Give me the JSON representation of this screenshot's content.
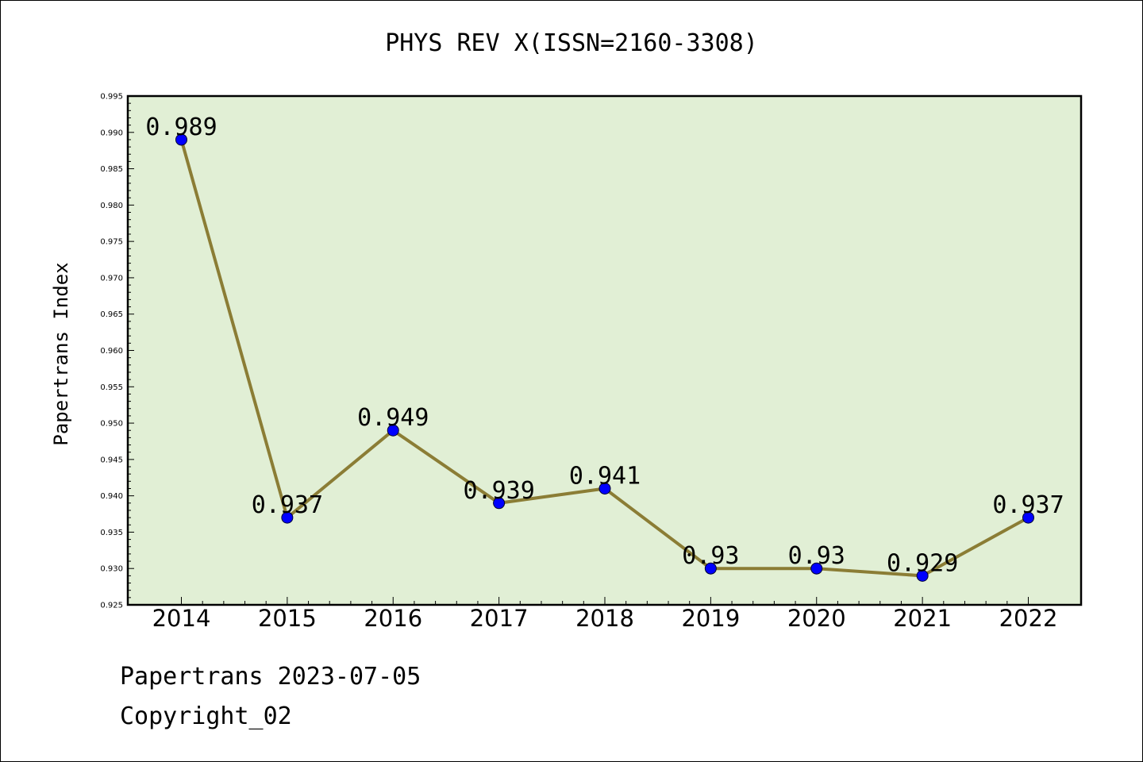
{
  "header": {
    "title": "PHYS REV X(ISSN=2160-3308)"
  },
  "footer": {
    "line1": "Papertrans 2023-07-05",
    "line2": "Copyright_02"
  },
  "colors": {
    "plot_background": "#e1efd5",
    "line": "#8b7d35",
    "marker": "#0000ff"
  },
  "chart_data": {
    "type": "line",
    "title": "PHYS REV X(ISSN=2160-3308)",
    "xlabel": "",
    "ylabel": "Papertrans Index",
    "x": [
      "2014",
      "2015",
      "2016",
      "2017",
      "2018",
      "2019",
      "2020",
      "2021",
      "2022"
    ],
    "series": [
      {
        "values": [
          0.989,
          0.937,
          0.949,
          0.939,
          0.941,
          0.93,
          0.93,
          0.929,
          0.937
        ],
        "labels": [
          "0.989",
          "0.937",
          "0.949",
          "0.939",
          "0.941",
          "0.93",
          "0.93",
          "0.929",
          "0.937"
        ]
      }
    ],
    "ylim": [
      0.925,
      0.995
    ],
    "yticks": [
      "0.925",
      "0.930",
      "0.935",
      "0.940",
      "0.945",
      "0.950",
      "0.955",
      "0.960",
      "0.965",
      "0.970",
      "0.975",
      "0.980",
      "0.985",
      "0.990",
      "0.995"
    ],
    "grid": false,
    "legend": "none"
  }
}
